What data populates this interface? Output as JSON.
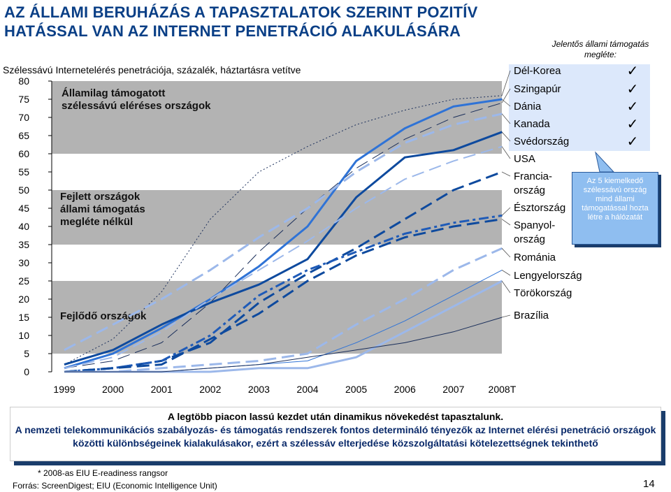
{
  "title_line1": "AZ ÁLLAMI BERUHÁZÁS A TAPASZTALATOK  SZERINT POZITÍV",
  "title_line2": "HATÁSSAL VAN AZ INTERNET PENETRÁCIÓ ALAKULÁSÁRA",
  "subtitle": "Szélessávú Internetelérés penetrációja, százalék, háztartásra vetítve",
  "right_header": "Jelentős állami támogatás megléte:",
  "callout": "Az 5 kiemelkedő szélessávú ország mind állami támogatással hozta létre a hálózatát",
  "bottom": {
    "line1": "A legtöbb piacon lassú kezdet után dinamikus növekedést tapasztalunk.",
    "line2": "A nemzeti telekommunikációs szabályozás- és támogatás rendszerek fontos determináló tényezők az Internet elérési penetráció országok közötti különbségeinek kialakulásakor, ezért a szélessáv elterjedése közszolgáltatási kötelezettségnek tekinthető"
  },
  "footnote": "* 2008-as EIU E-readiness rangsor",
  "source": "Forrás: ScreenDigest; EIU (Economic Intelligence Unit)",
  "page_number": "14",
  "checkmark": "✓",
  "colors": {
    "title": "#0a3f86",
    "band": "#b3b3b3",
    "dark_blue": "#0e4a9e",
    "mid_blue": "#2f73d6",
    "light_blue": "#9cb8ea",
    "navy": "#1a2e5a",
    "highlight_bg": "#dce8fb",
    "callout_bg": "#8fbef0"
  },
  "chart_data": {
    "type": "line",
    "x": [
      "1999",
      "2000",
      "2001",
      "2002",
      "2003",
      "2004",
      "2005",
      "2006",
      "2007",
      "2008T"
    ],
    "ylim": [
      0,
      80
    ],
    "yticks": [
      0,
      5,
      10,
      15,
      20,
      25,
      30,
      35,
      40,
      45,
      50,
      55,
      60,
      65,
      70,
      75,
      80
    ],
    "bands": [
      {
        "from": 60,
        "to": 80,
        "label": "Államilag támogatott szélessávú eléréses országok"
      },
      {
        "from": 35,
        "to": 50,
        "label": "Fejlett országok állami támogatás megléte nélkül"
      },
      {
        "from": 5,
        "to": 25,
        "label": "Fejlődő országok"
      }
    ],
    "series": [
      {
        "name": "Dél-Korea",
        "style": "dotted",
        "color": "#1a2e5a",
        "width": 1,
        "values": [
          2,
          9,
          22,
          42,
          55,
          62,
          68,
          72,
          75,
          76
        ],
        "highlight": true,
        "check": true
      },
      {
        "name": "Szingapúr",
        "style": "dashed",
        "color": "#1a2e5a",
        "width": 1,
        "values": [
          1,
          3,
          8,
          19,
          33,
          45,
          56,
          64,
          70,
          74
        ],
        "highlight": true,
        "check": true
      },
      {
        "name": "Dánia",
        "style": "solid",
        "color": "#2f73d6",
        "width": 3,
        "values": [
          1,
          5,
          12,
          20,
          29,
          40,
          58,
          67,
          73,
          75
        ],
        "highlight": true,
        "check": true
      },
      {
        "name": "Kanada",
        "style": "dashed",
        "color": "#9cb8ea",
        "width": 3,
        "values": [
          6,
          13,
          20,
          28,
          37,
          45,
          55,
          63,
          68,
          71
        ],
        "highlight": true,
        "check": true
      },
      {
        "name": "Svédország",
        "style": "solid",
        "color": "#0e4a9e",
        "width": 3,
        "values": [
          2,
          6,
          13,
          19,
          24,
          31,
          48,
          59,
          61,
          66
        ],
        "highlight": true,
        "check": true
      },
      {
        "name": "USA",
        "style": "dashed",
        "color": "#9cb8ea",
        "width": 2,
        "values": [
          1,
          4,
          11,
          20,
          28,
          36,
          45,
          53,
          58,
          62
        ],
        "highlight": false,
        "check": false
      },
      {
        "name": "Francia-ország",
        "style": "dashed",
        "color": "#0e4a9e",
        "width": 3,
        "values": [
          0,
          1,
          3,
          8,
          19,
          27,
          34,
          42,
          50,
          55
        ],
        "highlight": false,
        "check": false
      },
      {
        "name": "Észtország",
        "style": "dashdot",
        "color": "#1f5bb8",
        "width": 3,
        "values": [
          0,
          1,
          3,
          10,
          21,
          28,
          33,
          38,
          41,
          43
        ],
        "highlight": false,
        "check": false
      },
      {
        "name": "Spanyol-ország",
        "style": "dashed",
        "color": "#0e4a9e",
        "width": 3,
        "values": [
          0,
          1,
          2,
          9,
          16,
          25,
          32,
          37,
          40,
          42
        ],
        "highlight": false,
        "check": false
      },
      {
        "name": "Románia",
        "style": "dashed",
        "color": "#9cb8ea",
        "width": 3,
        "values": [
          0,
          0,
          1,
          2,
          3,
          5,
          13,
          20,
          28,
          34
        ],
        "highlight": false,
        "check": false
      },
      {
        "name": "Lengyelország",
        "style": "solid",
        "color": "#2f73d6",
        "width": 1,
        "values": [
          0,
          0,
          0,
          1,
          2,
          3,
          8,
          14,
          21,
          28
        ],
        "highlight": false,
        "check": false
      },
      {
        "name": "Törökország",
        "style": "solid",
        "color": "#9cb8ea",
        "width": 3,
        "values": [
          0,
          0,
          0,
          0,
          1,
          1,
          4,
          11,
          18,
          25
        ],
        "highlight": false,
        "check": false
      },
      {
        "name": "Brazília",
        "style": "solid",
        "color": "#1a2e5a",
        "width": 1,
        "values": [
          0,
          0,
          0,
          1,
          2,
          4,
          6,
          8,
          11,
          15
        ],
        "highlight": false,
        "check": false
      }
    ]
  }
}
